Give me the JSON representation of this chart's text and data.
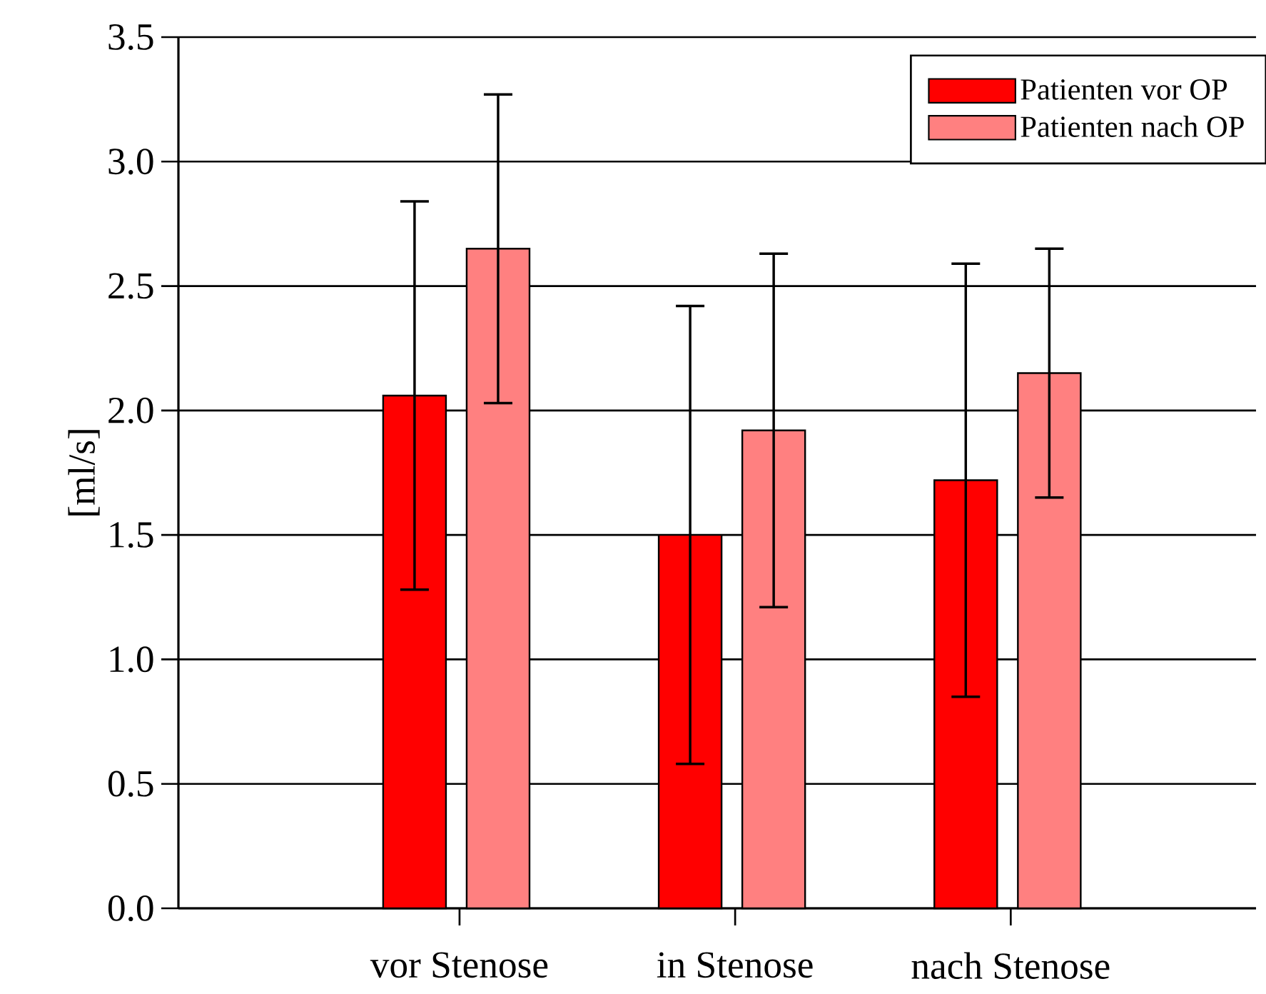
{
  "chart_data": {
    "type": "bar",
    "ylabel": "[ml/s]",
    "categories": [
      "vor Stenose",
      "in Stenose",
      "nach Stenose"
    ],
    "series": [
      {
        "name": "Patienten vor OP",
        "color": "#ff0000",
        "values": [
          2.06,
          1.5,
          1.72
        ],
        "errors": [
          0.78,
          0.92,
          0.87
        ]
      },
      {
        "name": "Patienten nach OP",
        "color": "#ff8080",
        "values": [
          2.65,
          1.92,
          2.15
        ],
        "errors": [
          0.62,
          0.71,
          0.5
        ]
      }
    ],
    "ylim": [
      0,
      3.5
    ],
    "yticks": [
      {
        "value": 0,
        "label": "0.0"
      },
      {
        "value": 0.5,
        "label": "0.5"
      },
      {
        "value": 1,
        "label": "1.0"
      },
      {
        "value": 1.5,
        "label": "1.5"
      },
      {
        "value": 2,
        "label": "2.0"
      },
      {
        "value": 2.5,
        "label": "2.5"
      },
      {
        "value": 3,
        "label": "3.0"
      },
      {
        "value": 3.5,
        "label": "3.5"
      }
    ],
    "grid": "y",
    "legend": "top right"
  }
}
